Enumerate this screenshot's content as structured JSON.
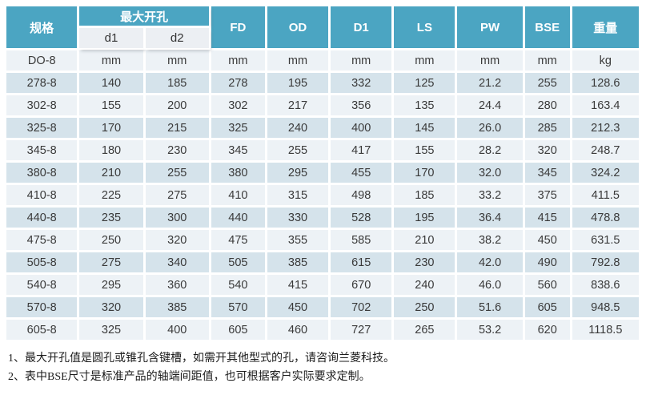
{
  "table": {
    "header": {
      "col_spec": "规格",
      "max_opening": "最大开孔",
      "sub": [
        "d1",
        "d2"
      ],
      "cols": [
        "FD",
        "OD",
        "D1",
        "LS",
        "PW",
        "BSE",
        "重量"
      ]
    },
    "units_row": [
      "DO-8",
      "mm",
      "mm",
      "mm",
      "mm",
      "mm",
      "mm",
      "mm",
      "mm",
      "kg"
    ],
    "rows": [
      [
        "278-8",
        "140",
        "185",
        "278",
        "195",
        "332",
        "125",
        "21.2",
        "255",
        "128.6"
      ],
      [
        "302-8",
        "155",
        "200",
        "302",
        "217",
        "356",
        "135",
        "24.4",
        "280",
        "163.4"
      ],
      [
        "325-8",
        "170",
        "215",
        "325",
        "240",
        "400",
        "145",
        "26.0",
        "285",
        "212.3"
      ],
      [
        "345-8",
        "180",
        "230",
        "345",
        "255",
        "417",
        "155",
        "28.2",
        "320",
        "248.7"
      ],
      [
        "380-8",
        "210",
        "255",
        "380",
        "295",
        "455",
        "170",
        "32.0",
        "345",
        "324.2"
      ],
      [
        "410-8",
        "225",
        "275",
        "410",
        "315",
        "498",
        "185",
        "33.2",
        "375",
        "411.5"
      ],
      [
        "440-8",
        "235",
        "300",
        "440",
        "330",
        "528",
        "195",
        "36.4",
        "415",
        "478.8"
      ],
      [
        "475-8",
        "250",
        "320",
        "475",
        "355",
        "585",
        "210",
        "38.2",
        "450",
        "631.5"
      ],
      [
        "505-8",
        "275",
        "340",
        "505",
        "385",
        "615",
        "230",
        "42.0",
        "490",
        "792.8"
      ],
      [
        "540-8",
        "295",
        "360",
        "540",
        "415",
        "670",
        "240",
        "46.0",
        "560",
        "838.6"
      ],
      [
        "570-8",
        "320",
        "385",
        "570",
        "450",
        "702",
        "250",
        "51.6",
        "605",
        "948.5"
      ],
      [
        "605-8",
        "325",
        "400",
        "605",
        "460",
        "727",
        "265",
        "53.2",
        "620",
        "1118.5"
      ]
    ]
  },
  "notes": [
    "1、最大开孔值是圆孔或锥孔含键槽，如需开其他型式的孔，请咨询兰菱科技。",
    "2、表中BSE尺寸是标准产品的轴端间距值，也可根据客户实际要求定制。"
  ],
  "colors": {
    "header_bg": "#4BA5C2",
    "subheader_bg": "#ECEFF3",
    "row_blue": "#D5E3EB",
    "row_light": "#EDF2F6",
    "gap": "#FFFFFF",
    "text": "#3A3A3A"
  }
}
